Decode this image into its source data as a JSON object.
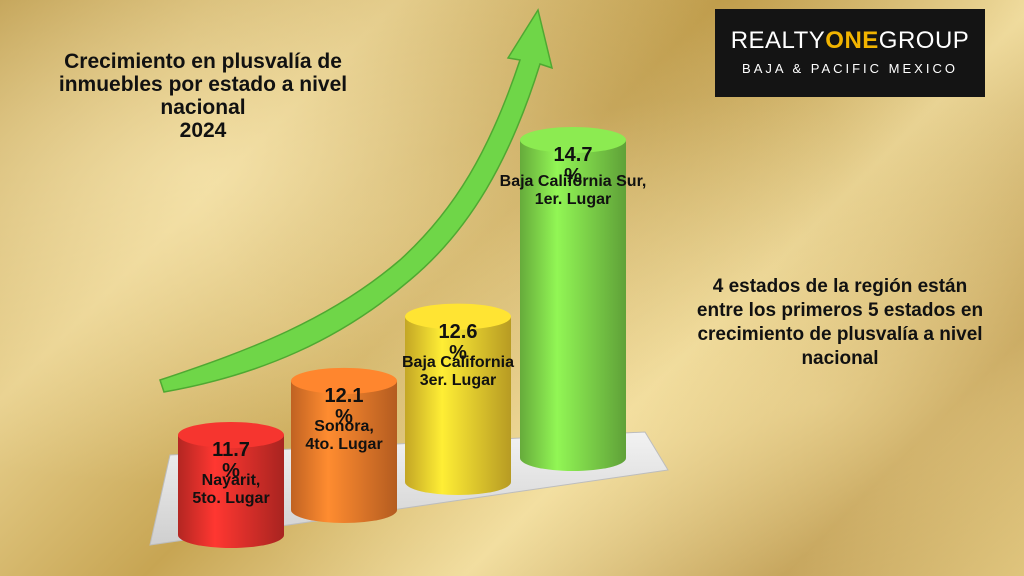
{
  "title_lines": [
    "Crecimiento en plusvalía de",
    "inmuebles por estado a nivel",
    "nacional",
    "2024"
  ],
  "logo": {
    "line1_a": "REALTY",
    "line1_b": "ONE",
    "line1_c": "GROUP",
    "line2": "BAJA & PACIFIC MEXICO"
  },
  "side_text": [
    "4 estados de la región  están",
    "entre los primeros 5 estados en",
    "crecimiento de plusvalía a nivel",
    "nacional"
  ],
  "chart_data": {
    "type": "bar",
    "categories": [
      "Nayarit, 5to. Lugar",
      "Sonora, 4to. Lugar",
      "Baja California 3er. Lugar",
      "Baja California Sur, 1er. Lugar"
    ],
    "values": [
      11.7,
      12.1,
      12.6,
      14.7
    ],
    "labels": [
      {
        "value": "11.7 %",
        "lines": [
          "Nayarit,",
          "5to. Lugar"
        ]
      },
      {
        "value": "12.1 %",
        "lines": [
          "Sonora,",
          "4to. Lugar"
        ]
      },
      {
        "value": "12.6 %",
        "lines": [
          "Baja California",
          "3er. Lugar"
        ]
      },
      {
        "value": "14.7 %",
        "lines": [
          "Baja California Sur,",
          "1er. Lugar"
        ]
      }
    ],
    "colors": [
      "#e0302b",
      "#f07a2a",
      "#f4cf2e",
      "#7fd64a"
    ],
    "arrow_color": "#6fd648",
    "title": "",
    "xlabel": "",
    "ylabel": ""
  }
}
